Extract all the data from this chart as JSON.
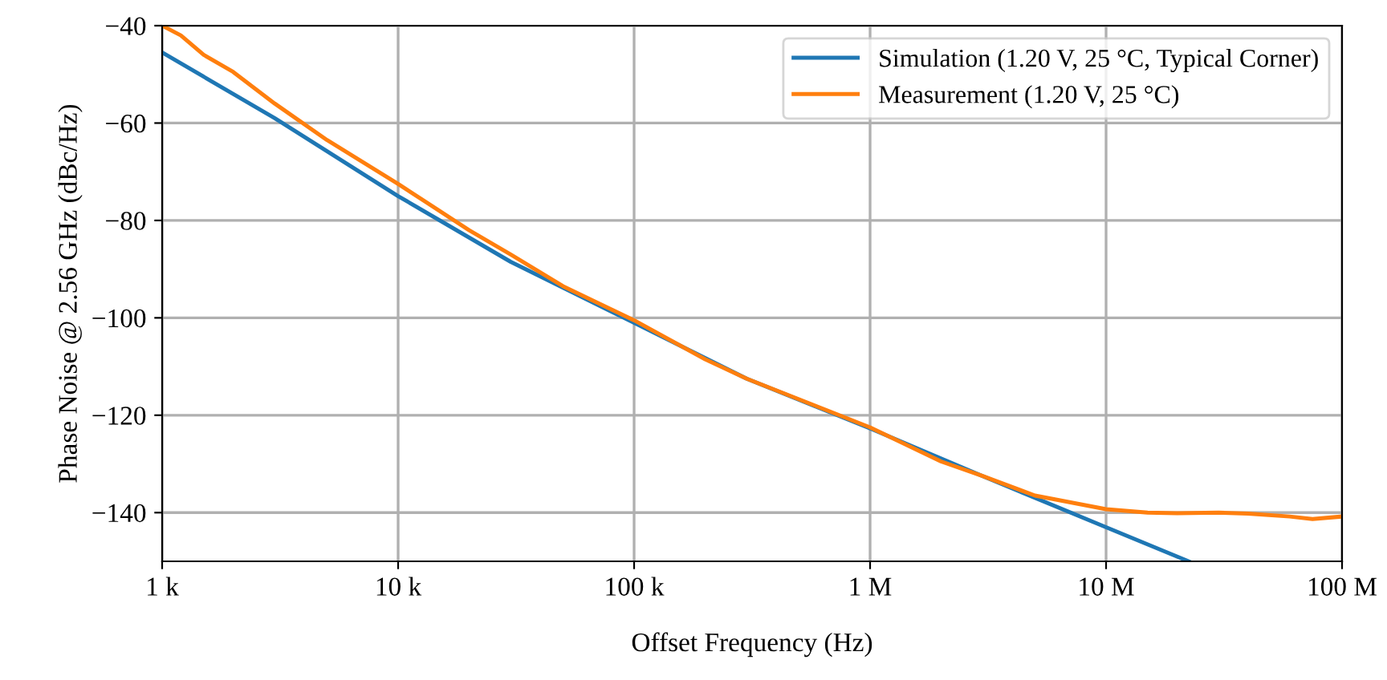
{
  "chart_data": {
    "type": "line",
    "xlabel": "Offset Frequency (Hz)",
    "ylabel": "Phase Noise @ 2.56 GHz (dBc/Hz)",
    "log": "x",
    "xlim": [
      1000,
      100000000
    ],
    "ylim": [
      -150,
      -40
    ],
    "xticks": [
      {
        "value": 1000,
        "label": "1 k"
      },
      {
        "value": 10000,
        "label": "10 k"
      },
      {
        "value": 100000,
        "label": "100 k"
      },
      {
        "value": 1000000,
        "label": "1 M"
      },
      {
        "value": 10000000,
        "label": "10 M"
      },
      {
        "value": 100000000,
        "label": "100 M"
      }
    ],
    "yticks": [
      -140,
      -120,
      -100,
      -80,
      -60,
      -40
    ],
    "grid": true,
    "legend": "top right",
    "line_style": "solid",
    "series": [
      {
        "name": "Simulation (1.20 V, 25 °C, Typical Corner)",
        "color": "#1f77b4",
        "x": [
          1000,
          3000,
          10000,
          30000,
          100000,
          300000,
          1000000,
          3000000,
          10000000,
          22400000
        ],
        "values": [
          -45.5,
          -59,
          -75,
          -88.5,
          -101,
          -112.5,
          -122.7,
          -132.5,
          -143,
          -150
        ]
      },
      {
        "name": "Measurement (1.20 V, 25 °C)",
        "color": "#ff7f0e",
        "x": [
          1000,
          1200,
          1500,
          2000,
          3000,
          5000,
          10000,
          20000,
          30000,
          50000,
          100000,
          200000,
          300000,
          1000000,
          2000000,
          3000000,
          5000000,
          10000000,
          15000000,
          20000000,
          30000000,
          40000000,
          60000000,
          75000000,
          100000000
        ],
        "values": [
          -40,
          -42,
          -46,
          -49.5,
          -56,
          -63.5,
          -72.5,
          -82,
          -87,
          -93.5,
          -100.5,
          -108.5,
          -112.5,
          -122.5,
          -129.5,
          -132.5,
          -136.5,
          -139.3,
          -140,
          -140.1,
          -140,
          -140.2,
          -140.8,
          -141.3,
          -140.8
        ]
      }
    ]
  }
}
